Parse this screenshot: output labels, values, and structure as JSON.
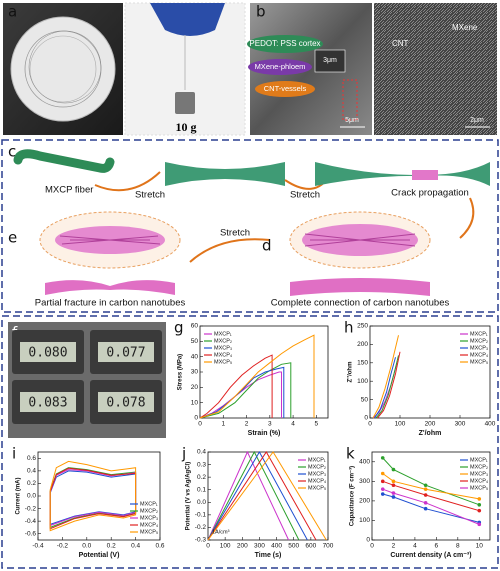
{
  "panels": {
    "a": {
      "label": "a",
      "weight": "10 g"
    },
    "b": {
      "label": "b",
      "cortex": "PEDOT: PSS cortex",
      "phloem": "MXene-phloem",
      "vessels": "CNT-vessels",
      "scale_inset": "3μm",
      "scale_left": "5μm",
      "cnt": "CNT",
      "mxene": "MXene",
      "scale_right": "2μm"
    },
    "c": {
      "label": "c",
      "fiber": "MXCP fiber",
      "stretch_1": "Stretch",
      "stretch_2": "Stretch",
      "crack": "Crack propagation"
    },
    "d": {
      "label": "d",
      "caption": "Complete connection of carbon nanotubes"
    },
    "e": {
      "label": "e",
      "stretch": "Stretch",
      "caption": "Partial fracture in carbon nanotubes"
    },
    "f": {
      "label": "f",
      "readings": [
        "0.080",
        "0.077",
        "0.083",
        "0.078"
      ]
    }
  },
  "chart_data": [
    {
      "type": "line",
      "label": "g",
      "xlabel": "Strain (%)",
      "ylabel": "Stress (MPa)",
      "xlim": [
        0,
        5.5
      ],
      "xticks": [
        0,
        1,
        2,
        3,
        4,
        5
      ],
      "ylim": [
        0,
        60
      ],
      "yticks": [
        0,
        10,
        20,
        30,
        40,
        50,
        60
      ],
      "legend": "upper left",
      "series": [
        {
          "name": "MXCP₁",
          "color": "#cc33cc",
          "x": [
            0,
            0.5,
            1,
            1.5,
            2,
            2.5,
            3,
            3.4,
            3.5,
            3.5
          ],
          "values": [
            0,
            3,
            8,
            14,
            20,
            25,
            28,
            30,
            30,
            0
          ]
        },
        {
          "name": "MXCP₂",
          "color": "#2ca02c",
          "x": [
            0,
            0.8,
            1.5,
            2,
            2.5,
            3,
            3.5,
            3.9,
            3.9
          ],
          "values": [
            0,
            3,
            10,
            18,
            26,
            31,
            35,
            36,
            0
          ]
        },
        {
          "name": "MXCP₃",
          "color": "#1f4fd1",
          "x": [
            0,
            0.7,
            1.2,
            1.8,
            2.3,
            2.8,
            3.3,
            3.6,
            3.6
          ],
          "values": [
            0,
            4,
            10,
            18,
            26,
            30,
            32,
            33,
            0
          ]
        },
        {
          "name": "MXCP₄",
          "color": "#e02020",
          "x": [
            0,
            0.3,
            0.8,
            1.3,
            1.8,
            2.3,
            2.8,
            3.1,
            3.1
          ],
          "values": [
            0,
            3,
            10,
            20,
            28,
            34,
            39,
            41,
            0
          ]
        },
        {
          "name": "MXCP₅",
          "color": "#ff9900",
          "x": [
            0,
            0.8,
            1.5,
            2,
            2.5,
            3,
            3.5,
            4,
            4.5,
            4.9,
            4.9
          ],
          "values": [
            0,
            4,
            14,
            22,
            30,
            36,
            42,
            47,
            51,
            54,
            0
          ]
        }
      ]
    },
    {
      "type": "line",
      "label": "h",
      "xlabel": "Z'/ohm",
      "ylabel": "Z''/ohm",
      "xlim": [
        0,
        400
      ],
      "xticks": [
        0,
        100,
        200,
        300,
        400
      ],
      "ylim": [
        0,
        250
      ],
      "yticks": [
        0,
        50,
        100,
        150,
        200,
        250
      ],
      "legend": "upper right",
      "series": [
        {
          "name": "MXCP₁",
          "color": "#cc33cc",
          "x": [
            10,
            30,
            50,
            70,
            90
          ],
          "values": [
            0,
            15,
            45,
            90,
            150
          ]
        },
        {
          "name": "MXCP₂",
          "color": "#2ca02c",
          "x": [
            20,
            40,
            60,
            80,
            95
          ],
          "values": [
            0,
            20,
            60,
            120,
            170
          ]
        },
        {
          "name": "MXCP₃",
          "color": "#1f4fd1",
          "x": [
            15,
            35,
            55,
            70,
            85
          ],
          "values": [
            0,
            25,
            70,
            120,
            165
          ]
        },
        {
          "name": "MXCP₄",
          "color": "#e02020",
          "x": [
            25,
            45,
            65,
            85,
            100
          ],
          "values": [
            0,
            20,
            60,
            120,
            180
          ]
        },
        {
          "name": "MXCP₅",
          "color": "#ff9900",
          "x": [
            10,
            30,
            50,
            70,
            95
          ],
          "values": [
            0,
            30,
            80,
            140,
            225
          ]
        }
      ]
    },
    {
      "type": "line",
      "label": "i",
      "xlabel": "Potential (V)",
      "ylabel": "Current (mA)",
      "xlim": [
        -0.4,
        0.6
      ],
      "xticks": [
        -0.4,
        -0.2,
        {
          "value": 0,
          "label": "0.0"
        },
        0.2,
        0.4,
        0.6
      ],
      "ylim": [
        -0.7,
        0.7
      ],
      "yticks": [
        -0.6,
        -0.4,
        -0.2,
        {
          "value": 0,
          "label": "0.0"
        },
        0.2,
        0.4,
        0.6
      ],
      "legend": "lower right",
      "series": [
        {
          "name": "MXCP₁",
          "color": "#1f4fd1",
          "x": [
            -0.3,
            -0.25,
            -0.15,
            0,
            0.2,
            0.4,
            0.4,
            0.3,
            0.1,
            -0.1,
            -0.3,
            -0.3
          ],
          "values": [
            0.05,
            0.3,
            0.4,
            0.38,
            0.3,
            0.35,
            -0.25,
            -0.3,
            -0.25,
            -0.32,
            -0.45,
            0.05
          ]
        },
        {
          "name": "MXCP₂",
          "color": "#2ca02c",
          "x": [
            -0.3,
            -0.25,
            -0.15,
            0,
            0.2,
            0.4,
            0.4,
            0.3,
            0.1,
            -0.1,
            -0.3,
            -0.3
          ],
          "values": [
            0.08,
            0.35,
            0.45,
            0.42,
            0.34,
            0.38,
            -0.27,
            -0.32,
            -0.27,
            -0.35,
            -0.5,
            0.08
          ]
        },
        {
          "name": "MXCP₃",
          "color": "#cc33cc",
          "x": [
            -0.3,
            -0.25,
            -0.15,
            0,
            0.2,
            0.4,
            0.4,
            0.3,
            0.1,
            -0.1,
            -0.3,
            -0.3
          ],
          "values": [
            0.06,
            0.33,
            0.42,
            0.4,
            0.32,
            0.37,
            -0.26,
            -0.31,
            -0.26,
            -0.33,
            -0.47,
            0.06
          ]
        },
        {
          "name": "MXCP₄",
          "color": "#e02020",
          "x": [
            -0.3,
            -0.25,
            -0.15,
            0,
            0.2,
            0.4,
            0.4,
            0.3,
            0.1,
            -0.1,
            -0.3,
            -0.3
          ],
          "values": [
            0.07,
            0.34,
            0.44,
            0.41,
            0.33,
            0.36,
            -0.28,
            -0.33,
            -0.28,
            -0.36,
            -0.52,
            0.07
          ]
        },
        {
          "name": "MXCP₅",
          "color": "#ff9900",
          "x": [
            -0.3,
            -0.25,
            -0.15,
            0,
            0.2,
            0.4,
            0.4,
            0.3,
            0.1,
            -0.1,
            -0.3,
            -0.3
          ],
          "values": [
            0.1,
            0.45,
            0.55,
            0.5,
            0.4,
            0.45,
            -0.3,
            -0.35,
            -0.3,
            -0.4,
            -0.55,
            0.1
          ]
        }
      ]
    },
    {
      "type": "line",
      "label": "j",
      "xlabel": "Time (s)",
      "ylabel": "Potential (V vs Ag/AgCl)",
      "annotation": "1A/cm³",
      "xlim": [
        0,
        700
      ],
      "xticks": [
        0,
        100,
        200,
        300,
        400,
        500,
        600,
        700
      ],
      "ylim": [
        -0.3,
        0.4
      ],
      "yticks": [
        -0.3,
        -0.2,
        -0.1,
        {
          "value": 0,
          "label": "0.0"
        },
        0.1,
        0.2,
        0.3,
        0.4
      ],
      "legend": "upper right",
      "series": [
        {
          "name": "MXCP₁",
          "color": "#cc33cc",
          "x": [
            0,
            230,
            470
          ],
          "values": [
            -0.3,
            0.4,
            -0.3
          ]
        },
        {
          "name": "MXCP₂",
          "color": "#2ca02c",
          "x": [
            0,
            270,
            530
          ],
          "values": [
            -0.3,
            0.4,
            -0.3
          ]
        },
        {
          "name": "MXCP₃",
          "color": "#1f4fd1",
          "x": [
            0,
            300,
            580
          ],
          "values": [
            -0.3,
            0.4,
            -0.3
          ]
        },
        {
          "name": "MXCP₄",
          "color": "#e02020",
          "x": [
            0,
            340,
            630
          ],
          "values": [
            -0.3,
            0.4,
            -0.3
          ]
        },
        {
          "name": "MXCP₅",
          "color": "#ff9900",
          "x": [
            0,
            380,
            690
          ],
          "values": [
            -0.3,
            0.4,
            -0.3
          ]
        }
      ]
    },
    {
      "type": "line",
      "label": "k",
      "xlabel": "Current density (A cm⁻³)",
      "ylabel": "Capacitance (F cm⁻³)",
      "markers": true,
      "xlim": [
        0,
        11
      ],
      "xticks": [
        0,
        2,
        4,
        6,
        8,
        10
      ],
      "ylim": [
        0,
        450
      ],
      "yticks": [
        0,
        100,
        200,
        300,
        400
      ],
      "legend": "upper right",
      "series": [
        {
          "name": "MXCP₁",
          "color": "#1f4fd1",
          "x": [
            1,
            2,
            5,
            10
          ],
          "values": [
            235,
            220,
            160,
            90
          ]
        },
        {
          "name": "MXCP₂",
          "color": "#2ca02c",
          "x": [
            1,
            2,
            5,
            10
          ],
          "values": [
            420,
            360,
            280,
            180
          ]
        },
        {
          "name": "MXCP₃",
          "color": "#ff9900",
          "x": [
            1,
            2,
            5,
            10
          ],
          "values": [
            340,
            300,
            260,
            210
          ]
        },
        {
          "name": "MXCP₄",
          "color": "#e02020",
          "x": [
            1,
            2,
            5,
            10
          ],
          "values": [
            300,
            280,
            230,
            150
          ]
        },
        {
          "name": "MXCP₅",
          "color": "#cc33cc",
          "x": [
            1,
            2,
            5,
            10
          ],
          "values": [
            260,
            240,
            190,
            80
          ]
        }
      ]
    }
  ]
}
